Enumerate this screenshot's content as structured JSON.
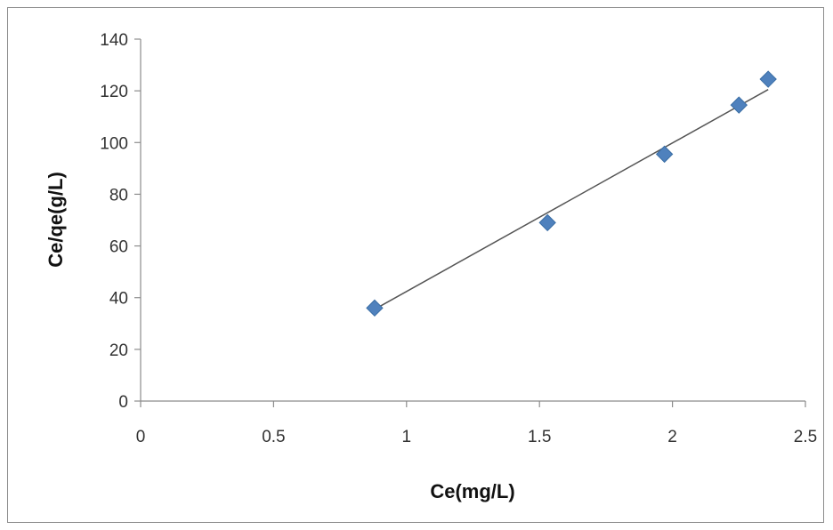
{
  "chart_data": {
    "type": "scatter",
    "title": "",
    "xlabel": "Ce(mg/L)",
    "ylabel": "Ce/qe(g/L)",
    "xlim": [
      0,
      2.5
    ],
    "ylim": [
      0,
      140
    ],
    "x_ticks": [
      "0",
      "0.5",
      "1",
      "1.5",
      "2",
      "2.5"
    ],
    "y_ticks": [
      "0",
      "20",
      "40",
      "60",
      "80",
      "100",
      "120",
      "140"
    ],
    "grid": false,
    "legend": "none",
    "marker_color": "#4f81bd",
    "trendline": {
      "type": "linear",
      "x": [
        0.88,
        2.36
      ],
      "y": [
        35.5,
        120.5
      ],
      "color": "#555555"
    },
    "series": [
      {
        "x": [
          0.88,
          1.53,
          1.97,
          2.25,
          2.36
        ],
        "y": [
          36,
          69,
          95.5,
          114.5,
          124.5
        ]
      }
    ]
  }
}
